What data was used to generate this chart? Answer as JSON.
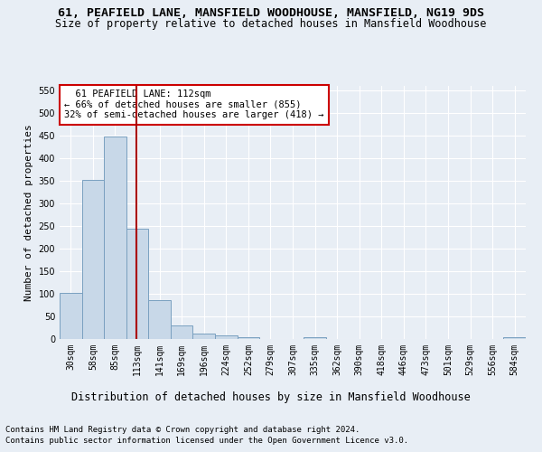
{
  "title1": "61, PEAFIELD LANE, MANSFIELD WOODHOUSE, MANSFIELD, NG19 9DS",
  "title2": "Size of property relative to detached houses in Mansfield Woodhouse",
  "xlabel": "Distribution of detached houses by size in Mansfield Woodhouse",
  "ylabel": "Number of detached properties",
  "footer1": "Contains HM Land Registry data © Crown copyright and database right 2024.",
  "footer2": "Contains public sector information licensed under the Open Government Licence v3.0.",
  "bar_labels": [
    "30sqm",
    "58sqm",
    "85sqm",
    "113sqm",
    "141sqm",
    "169sqm",
    "196sqm",
    "224sqm",
    "252sqm",
    "279sqm",
    "307sqm",
    "335sqm",
    "362sqm",
    "390sqm",
    "418sqm",
    "446sqm",
    "473sqm",
    "501sqm",
    "529sqm",
    "556sqm",
    "584sqm"
  ],
  "bar_values": [
    103,
    353,
    449,
    245,
    87,
    30,
    13,
    9,
    5,
    0,
    0,
    5,
    0,
    0,
    0,
    0,
    0,
    0,
    0,
    0,
    5
  ],
  "bar_color": "#c8d8e8",
  "bar_edgecolor": "#7aa0c0",
  "vline_x": 2.96,
  "vline_color": "#aa0000",
  "annotation_text": "  61 PEAFIELD LANE: 112sqm\n← 66% of detached houses are smaller (855)\n32% of semi-detached houses are larger (418) →",
  "annotation_box_color": "white",
  "annotation_box_edgecolor": "#cc0000",
  "ylim": [
    0,
    560
  ],
  "yticks": [
    0,
    50,
    100,
    150,
    200,
    250,
    300,
    350,
    400,
    450,
    500,
    550
  ],
  "background_color": "#e8eef5",
  "plot_background": "#e8eef5",
  "title1_fontsize": 9.5,
  "title2_fontsize": 8.5,
  "xlabel_fontsize": 8.5,
  "ylabel_fontsize": 8,
  "tick_fontsize": 7,
  "ann_fontsize": 7.5,
  "footer_fontsize": 6.5
}
